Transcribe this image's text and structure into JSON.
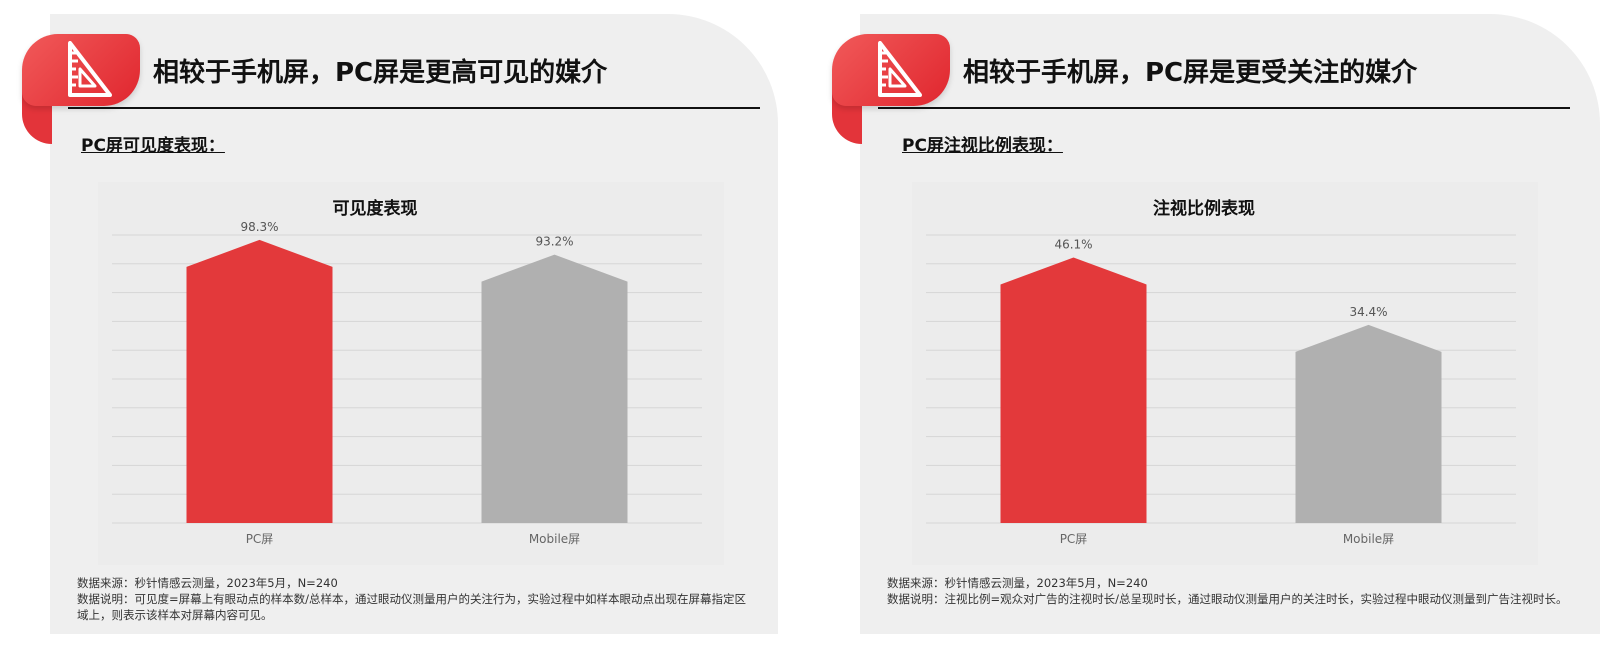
{
  "colors": {
    "primary_bar": "#e3393b",
    "secondary_bar": "#b0b0b0",
    "accent": "#e3343a"
  },
  "left": {
    "icon": "ruler-triangle-icon",
    "heading": "相较于手机屏，PC屏是更高可见的媒介",
    "subheading": "PC屏可见度表现：",
    "source": "数据来源：秒针情感云测量，2023年5月，N=240",
    "explanation": "数据说明：可见度=屏幕上有眼动点的样本数/总样本，通过眼动仪测量用户的关注行为，实验过程中如样本眼动点出现在屏幕指定区域上，则表示该样本对屏幕内容可见。"
  },
  "right": {
    "icon": "ruler-triangle-icon",
    "heading": "相较于手机屏，PC屏是更受关注的媒介",
    "subheading": "PC屏注视比例表现：",
    "source": "数据来源：秒针情感云测量，2023年5月，N=240",
    "explanation": "数据说明：注视比例=观众对广告的注视时长/总呈现时长，通过眼动仪测量用户的关注时长，实验过程中眼动仪测量到广告注视时长。"
  },
  "chart_data": [
    {
      "type": "bar",
      "title": "可见度表现",
      "categories": [
        "PC屏",
        "Mobile屏"
      ],
      "values": [
        98.3,
        93.2
      ],
      "labels": [
        "98.3%",
        "93.2%"
      ],
      "unit": "%",
      "ylim": [
        0,
        100
      ],
      "grid": true
    },
    {
      "type": "bar",
      "title": "注视比例表现",
      "categories": [
        "PC屏",
        "Mobile屏"
      ],
      "values": [
        46.1,
        34.4
      ],
      "labels": [
        "46.1%",
        "34.4%"
      ],
      "unit": "%",
      "ylim": [
        0,
        50
      ],
      "grid": true
    }
  ]
}
